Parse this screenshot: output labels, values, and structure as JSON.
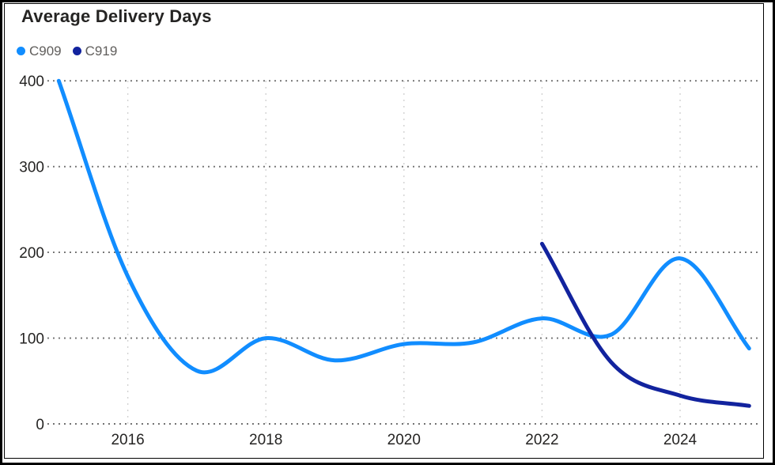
{
  "title": "Average Delivery Days",
  "legend": {
    "items": [
      {
        "label": "C909",
        "color": "#118DFF"
      },
      {
        "label": "C919",
        "color": "#12239E"
      }
    ]
  },
  "colors": {
    "background": "#ffffff",
    "frame": "#000000",
    "axis_label": "#252423",
    "legend_label": "#605E5C",
    "h_gridline": "#6b6b6b",
    "v_gridline": "#bdbdbd"
  },
  "chart_data": {
    "type": "line",
    "title": "Average Delivery Days",
    "xlabel": "",
    "ylabel": "",
    "x_ticks": [
      2016,
      2018,
      2020,
      2022,
      2024
    ],
    "y_ticks": [
      0,
      100,
      200,
      300,
      400
    ],
    "xlim": [
      2015,
      2025.15
    ],
    "ylim": [
      0,
      400
    ],
    "grid": {
      "horizontal": true,
      "vertical": true,
      "style": "dotted"
    },
    "legend_position": "top-left",
    "smoothing": "catmull-rom",
    "series": [
      {
        "name": "C909",
        "color": "#118DFF",
        "x": [
          2015,
          2016,
          2017,
          2018,
          2019,
          2020,
          2021,
          2022,
          2023,
          2024,
          2025
        ],
        "values": [
          400,
          172,
          62,
          100,
          74,
          93,
          95,
          123,
          104,
          193,
          88
        ]
      },
      {
        "name": "C919",
        "color": "#12239E",
        "x": [
          2022,
          2023,
          2024,
          2025
        ],
        "values": [
          210,
          72,
          33,
          21
        ]
      }
    ]
  }
}
